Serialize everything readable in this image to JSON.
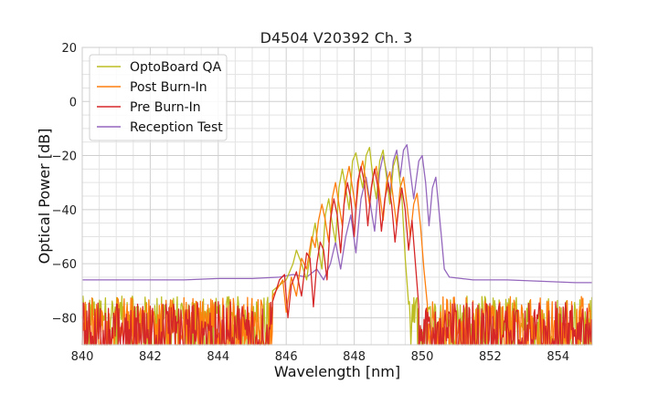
{
  "chart_data": {
    "type": "line",
    "title": "D4504 V20392 Ch. 3",
    "xlabel": "Wavelength [nm]",
    "ylabel": "Optical Power [dB]",
    "xlim": [
      840,
      855
    ],
    "ylim": [
      -90,
      20
    ],
    "xticks": [
      840,
      842,
      844,
      846,
      848,
      850,
      852,
      854
    ],
    "yticks": [
      20,
      0,
      -20,
      -40,
      -60,
      -80
    ],
    "minor_grid_x_step": 0.5,
    "minor_grid_y_step": 5,
    "grid": true,
    "legend_position": "top-left",
    "series": [
      {
        "name": "OptoBoard QA",
        "color": "#bcbd22",
        "noise_floor": {
          "x_range": [
            840,
            845.6
          ],
          "level": -78,
          "amplitude": 6
        },
        "points": [
          [
            845.6,
            -70
          ],
          [
            845.8,
            -68
          ],
          [
            846.0,
            -66
          ],
          [
            846.2,
            -60
          ],
          [
            846.3,
            -55
          ],
          [
            846.45,
            -60
          ],
          [
            846.6,
            -66
          ],
          [
            846.75,
            -52
          ],
          [
            846.85,
            -45
          ],
          [
            846.95,
            -55
          ],
          [
            847.05,
            -62
          ],
          [
            847.15,
            -42
          ],
          [
            847.25,
            -36
          ],
          [
            847.35,
            -45
          ],
          [
            847.45,
            -52
          ],
          [
            847.55,
            -32
          ],
          [
            847.65,
            -25
          ],
          [
            847.75,
            -32
          ],
          [
            847.85,
            -40
          ],
          [
            847.95,
            -22
          ],
          [
            848.05,
            -19
          ],
          [
            848.15,
            -26
          ],
          [
            848.25,
            -32
          ],
          [
            848.35,
            -20
          ],
          [
            848.45,
            -17
          ],
          [
            848.55,
            -28
          ],
          [
            848.65,
            -36
          ],
          [
            848.75,
            -22
          ],
          [
            848.85,
            -18
          ],
          [
            848.95,
            -28
          ],
          [
            849.05,
            -38
          ],
          [
            849.15,
            -24
          ],
          [
            849.25,
            -20
          ],
          [
            849.4,
            -35
          ],
          [
            849.5,
            -58
          ],
          [
            849.6,
            -75
          ]
        ],
        "noise_tail": {
          "x_range": [
            849.6,
            855
          ],
          "level": -80,
          "amplitude": 8
        }
      },
      {
        "name": "Post Burn-In",
        "color": "#ff7f0e",
        "noise_floor": {
          "x_range": [
            840,
            845.6
          ],
          "level": -80,
          "amplitude": 8
        },
        "points": [
          [
            845.6,
            -72
          ],
          [
            845.9,
            -66
          ],
          [
            846.0,
            -78
          ],
          [
            846.15,
            -65
          ],
          [
            846.3,
            -72
          ],
          [
            846.45,
            -58
          ],
          [
            846.6,
            -62
          ],
          [
            846.75,
            -50
          ],
          [
            846.85,
            -54
          ],
          [
            846.95,
            -44
          ],
          [
            847.05,
            -38
          ],
          [
            847.15,
            -44
          ],
          [
            847.25,
            -52
          ],
          [
            847.35,
            -36
          ],
          [
            847.45,
            -30
          ],
          [
            847.55,
            -38
          ],
          [
            847.65,
            -46
          ],
          [
            847.75,
            -30
          ],
          [
            847.85,
            -24
          ],
          [
            847.95,
            -32
          ],
          [
            848.05,
            -40
          ],
          [
            848.15,
            -27
          ],
          [
            848.25,
            -22
          ],
          [
            848.35,
            -30
          ],
          [
            848.45,
            -38
          ],
          [
            848.55,
            -28
          ],
          [
            848.65,
            -24
          ],
          [
            848.75,
            -34
          ],
          [
            848.85,
            -44
          ],
          [
            848.95,
            -30
          ],
          [
            849.05,
            -26
          ],
          [
            849.15,
            -36
          ],
          [
            849.25,
            -46
          ],
          [
            849.35,
            -32
          ],
          [
            849.45,
            -28
          ],
          [
            849.55,
            -38
          ],
          [
            849.65,
            -50
          ],
          [
            849.75,
            -38
          ],
          [
            849.85,
            -34
          ],
          [
            849.95,
            -46
          ],
          [
            850.05,
            -62
          ],
          [
            850.15,
            -75
          ]
        ],
        "noise_tail": {
          "x_range": [
            850.15,
            855
          ],
          "level": -80,
          "amplitude": 8
        }
      },
      {
        "name": "Pre Burn-In",
        "color": "#d62728",
        "noise_floor": {
          "x_range": [
            840,
            845.6
          ],
          "level": -82,
          "amplitude": 8
        },
        "points": [
          [
            845.6,
            -74
          ],
          [
            845.8,
            -66
          ],
          [
            845.95,
            -64
          ],
          [
            846.05,
            -80
          ],
          [
            846.15,
            -68
          ],
          [
            846.3,
            -63
          ],
          [
            846.45,
            -72
          ],
          [
            846.6,
            -56
          ],
          [
            846.7,
            -58
          ],
          [
            846.8,
            -76
          ],
          [
            846.9,
            -60
          ],
          [
            847.0,
            -52
          ],
          [
            847.1,
            -55
          ],
          [
            847.2,
            -66
          ],
          [
            847.3,
            -44
          ],
          [
            847.4,
            -36
          ],
          [
            847.5,
            -42
          ],
          [
            847.6,
            -56
          ],
          [
            847.7,
            -38
          ],
          [
            847.8,
            -30
          ],
          [
            847.9,
            -36
          ],
          [
            848.0,
            -50
          ],
          [
            848.1,
            -30
          ],
          [
            848.2,
            -24
          ],
          [
            848.3,
            -30
          ],
          [
            848.4,
            -46
          ],
          [
            848.5,
            -32
          ],
          [
            848.6,
            -25
          ],
          [
            848.7,
            -32
          ],
          [
            848.8,
            -48
          ],
          [
            848.9,
            -36
          ],
          [
            849.0,
            -30
          ],
          [
            849.1,
            -38
          ],
          [
            849.2,
            -52
          ],
          [
            849.3,
            -40
          ],
          [
            849.4,
            -32
          ],
          [
            849.5,
            -40
          ],
          [
            849.6,
            -55
          ],
          [
            849.7,
            -44
          ],
          [
            849.8,
            -60
          ],
          [
            849.9,
            -76
          ]
        ],
        "noise_tail": {
          "x_range": [
            849.9,
            855
          ],
          "level": -82,
          "amplitude": 8
        }
      },
      {
        "name": "Reception Test",
        "color": "#9467bd",
        "points": [
          [
            840,
            -66
          ],
          [
            841,
            -66
          ],
          [
            842,
            -66
          ],
          [
            843,
            -66
          ],
          [
            844,
            -65.5
          ],
          [
            845,
            -65.5
          ],
          [
            845.8,
            -65
          ],
          [
            846.2,
            -64
          ],
          [
            846.6,
            -65
          ],
          [
            846.9,
            -62
          ],
          [
            847.1,
            -66
          ],
          [
            847.3,
            -60
          ],
          [
            847.45,
            -52
          ],
          [
            847.6,
            -62
          ],
          [
            847.75,
            -50
          ],
          [
            847.9,
            -42
          ],
          [
            848.05,
            -56
          ],
          [
            848.2,
            -36
          ],
          [
            848.35,
            -28
          ],
          [
            848.5,
            -40
          ],
          [
            848.6,
            -48
          ],
          [
            848.75,
            -26
          ],
          [
            848.85,
            -20
          ],
          [
            848.95,
            -26
          ],
          [
            849.05,
            -34
          ],
          [
            849.15,
            -22
          ],
          [
            849.25,
            -18
          ],
          [
            849.35,
            -28
          ],
          [
            849.45,
            -18
          ],
          [
            849.55,
            -16
          ],
          [
            849.65,
            -26
          ],
          [
            849.75,
            -36
          ],
          [
            849.9,
            -22
          ],
          [
            850.0,
            -20
          ],
          [
            850.1,
            -30
          ],
          [
            850.2,
            -46
          ],
          [
            850.3,
            -32
          ],
          [
            850.4,
            -28
          ],
          [
            850.55,
            -48
          ],
          [
            850.65,
            -62
          ],
          [
            850.8,
            -65
          ],
          [
            851.5,
            -66
          ],
          [
            852.5,
            -66
          ],
          [
            853.5,
            -66.5
          ],
          [
            854.5,
            -67
          ],
          [
            855,
            -67
          ]
        ]
      }
    ]
  }
}
